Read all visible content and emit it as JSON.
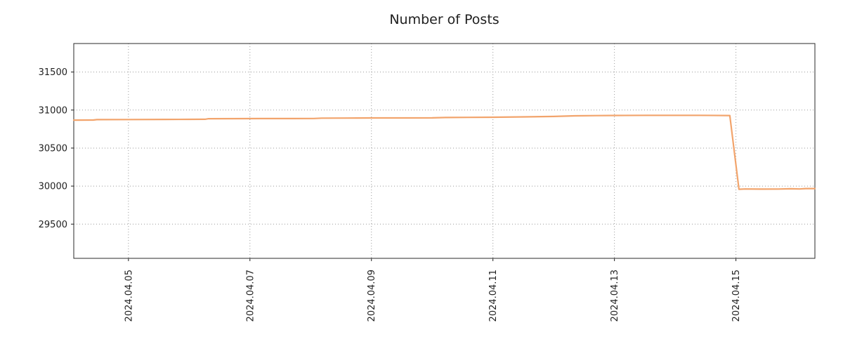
{
  "chart_data": {
    "type": "line",
    "title": "Number of Posts",
    "xlabel": "",
    "ylabel": "",
    "grid": "dotted",
    "legend": "none",
    "series_name": "posts",
    "series_color": "#f2a46c",
    "xlim_days": [
      4.1,
      16.3
    ],
    "ylim": [
      29050,
      31875
    ],
    "y_ticks": [
      {
        "value": 31500,
        "label": "31500"
      },
      {
        "value": 31000,
        "label": "31000"
      },
      {
        "value": 30500,
        "label": "30500"
      },
      {
        "value": 30000,
        "label": "30000"
      },
      {
        "value": 29500,
        "label": "29500"
      }
    ],
    "x_ticks": [
      {
        "day": 5,
        "label": "2024.04.05"
      },
      {
        "day": 7,
        "label": "2024.04.07"
      },
      {
        "day": 9,
        "label": "2024.04.09"
      },
      {
        "day": 11,
        "label": "2024.04.11"
      },
      {
        "day": 13,
        "label": "2024.04.13"
      },
      {
        "day": 15,
        "label": "2024.04.15"
      }
    ],
    "points": [
      [
        4.1,
        30868
      ],
      [
        4.42,
        30869
      ],
      [
        4.48,
        30874
      ],
      [
        5.0,
        30875
      ],
      [
        5.6,
        30877
      ],
      [
        6.0,
        30878
      ],
      [
        6.26,
        30879
      ],
      [
        6.32,
        30886
      ],
      [
        6.8,
        30887
      ],
      [
        7.2,
        30888
      ],
      [
        7.7,
        30888
      ],
      [
        8.05,
        30889
      ],
      [
        8.18,
        30894
      ],
      [
        8.6,
        30895
      ],
      [
        9.0,
        30896
      ],
      [
        9.5,
        30896
      ],
      [
        10.0,
        30897
      ],
      [
        10.22,
        30902
      ],
      [
        10.6,
        30904
      ],
      [
        11.0,
        30906
      ],
      [
        11.5,
        30910
      ],
      [
        12.0,
        30916
      ],
      [
        12.35,
        30924
      ],
      [
        12.7,
        30927
      ],
      [
        13.0,
        30929
      ],
      [
        13.5,
        30931
      ],
      [
        14.0,
        30931
      ],
      [
        14.4,
        30931
      ],
      [
        14.9,
        30928
      ],
      [
        15.05,
        29958
      ],
      [
        15.15,
        29962
      ],
      [
        15.4,
        29960
      ],
      [
        15.7,
        29961
      ],
      [
        15.9,
        29965
      ],
      [
        16.05,
        29962
      ],
      [
        16.15,
        29968
      ],
      [
        16.3,
        29968
      ]
    ]
  }
}
